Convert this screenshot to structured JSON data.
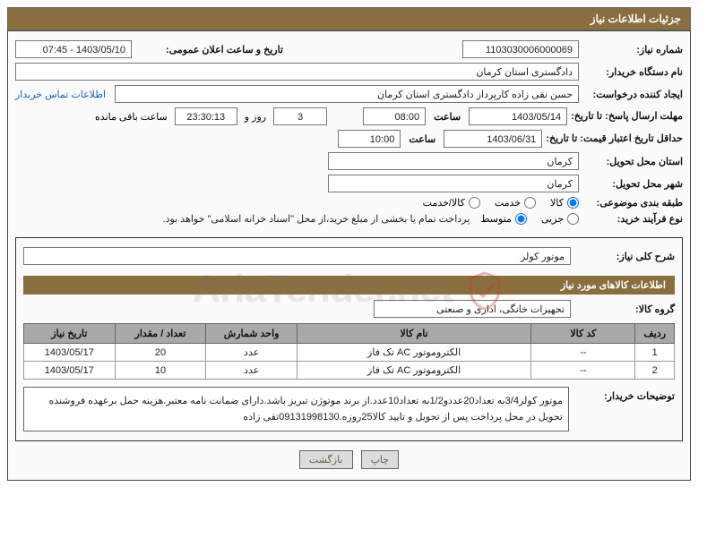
{
  "header_title": "جزئیات اطلاعات نیاز",
  "fields": {
    "need_no_label": "شماره نیاز:",
    "need_no": "1103030006000069",
    "ann_dt_label": "تاریخ و ساعت اعلان عمومی:",
    "ann_dt": "1403/05/10 - 07:45",
    "buyer_org_label": "نام دستگاه خریدار:",
    "buyer_org": "دادگستری استان کرمان",
    "requester_label": "ایجاد کننده درخواست:",
    "requester": "حسن نقی زاده کارپرداز دادگستری استان کرمان",
    "contact_link": "اطلاعات تماس خریدار",
    "reply_deadline_label": "مهلت ارسال پاسخ: تا تاریخ:",
    "reply_date": "1403/05/14",
    "time_label": "ساعت",
    "reply_time": "08:00",
    "days": "3",
    "days_and": "روز و",
    "remain_time": "23:30:13",
    "remain_suffix": "ساعت باقی مانده",
    "validity_label": "حداقل تاریخ اعتبار قیمت: تا تاریخ:",
    "validity_date": "1403/06/31",
    "validity_time": "10:00",
    "province_label": "استان محل تحویل:",
    "province": "کرمان",
    "city_label": "شهر محل تحویل:",
    "city": "کرمان",
    "classify_label": "طبقه بندی موضوعی:",
    "radio_goods": "کالا",
    "radio_service": "خدمت",
    "radio_goods_service": "کالا/خدمت",
    "proc_type_label": "نوع فرآیند خرید:",
    "radio_minor": "جزیی",
    "radio_medium": "متوسط",
    "proc_note": "پرداخت تمام یا بخشی از مبلغ خرید،از محل \"اسناد خزانه اسلامی\" خواهد بود.",
    "summary_label": "شرح کلی نیاز:",
    "summary": "موتور کولر",
    "goods_info_header": "اطلاعات کالاهای مورد نیاز",
    "group_label": "گروه کالا:",
    "group": "تجهیزات خانگی، اداری و صنعتی",
    "buyer_desc_label": "توضیحات خریدار:",
    "buyer_desc": "موتور کولر3/4به تعداد20عددو1/2به تعداد10عدد.از برند موتوژن تبریز باشد.دارای ضمانت نامه معتبر.هزینه حمل برعهده فروشنده تحویل در محل پرداخت پس از تحویل و تایید کالا25روزه.09131998130تقی زاده",
    "btn_print": "چاپ",
    "btn_back": "بازگشت"
  },
  "table": {
    "headers": [
      "ردیف",
      "کد کالا",
      "نام کالا",
      "واحد شمارش",
      "تعداد / مقدار",
      "تاریخ نیاز"
    ],
    "col_widths": [
      "6%",
      "16%",
      "36%",
      "14%",
      "14%",
      "14%"
    ],
    "rows": [
      [
        "1",
        "--",
        "الکتروموتور AC تک فاز",
        "عدد",
        "20",
        "1403/05/17"
      ],
      [
        "2",
        "--",
        "الکتروموتور AC تک فاز",
        "عدد",
        "10",
        "1403/05/17"
      ]
    ]
  },
  "watermark": {
    "text": "AriaTender.net",
    "color_light": "rgba(120,120,120,0.15)",
    "accent": "#c0392b"
  },
  "colors": {
    "header_bg": "#8a6e3e",
    "th_bg": "#a9a9a9",
    "link": "#1460c9",
    "btn_bg": "#dcdcdc"
  }
}
